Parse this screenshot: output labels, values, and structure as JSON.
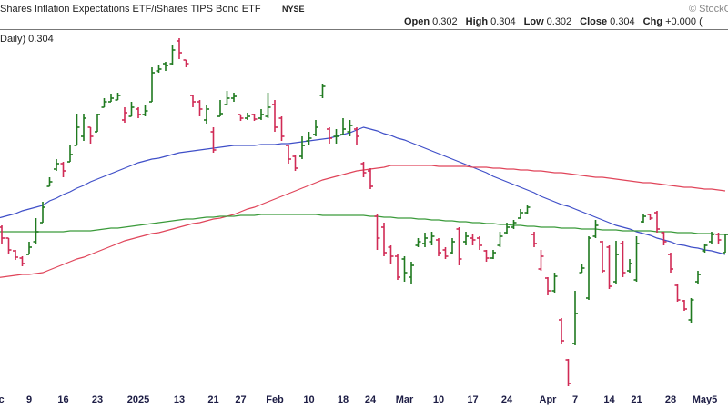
{
  "chart_data": {
    "type": "ohlc",
    "title": "Shares Inflation Expectations ETF/iShares TIPS Bond ETF",
    "exchange": "NYSE",
    "copyright": "© StockCh",
    "legend_label": "Daily) 0.304",
    "quote": [
      {
        "label": "Open",
        "value": 0.302
      },
      {
        "label": "High",
        "value": 0.304
      },
      {
        "label": "Low",
        "value": 0.302
      },
      {
        "label": "Close",
        "value": 0.304
      },
      {
        "label": "Chg",
        "value": "+0.000 ("
      }
    ],
    "up_color": "#1f7a1f",
    "down_color": "#d02a55",
    "ylim": [
      0.2848,
      0.3268
    ],
    "categories": [
      "Dec",
      null,
      null,
      null,
      null,
      "9",
      null,
      null,
      null,
      null,
      "16",
      null,
      null,
      null,
      null,
      "23",
      null,
      null,
      null,
      null,
      null,
      "2025",
      null,
      null,
      null,
      null,
      null,
      "13",
      null,
      null,
      null,
      null,
      "21",
      null,
      null,
      null,
      "27",
      null,
      null,
      null,
      null,
      "Feb",
      null,
      null,
      null,
      null,
      "10",
      null,
      null,
      null,
      null,
      "18",
      null,
      null,
      null,
      "24",
      null,
      null,
      null,
      null,
      "Mar",
      null,
      null,
      null,
      null,
      "10",
      null,
      null,
      null,
      null,
      "17",
      null,
      null,
      null,
      null,
      "24",
      null,
      null,
      null,
      null,
      null,
      "Apr",
      null,
      null,
      null,
      "7",
      null,
      null,
      null,
      null,
      "14",
      null,
      null,
      null,
      "21",
      null,
      null,
      null,
      null,
      "28",
      null,
      null,
      null,
      null,
      "May5",
      null,
      null,
      null
    ],
    "open": [
      0.305,
      0.3048,
      0.3036,
      0.3022,
      0.3014,
      0.3018,
      0.3032,
      0.3053,
      0.3093,
      0.3112,
      0.3118,
      0.312,
      0.3138,
      0.3148,
      0.3158,
      0.3153,
      0.318,
      0.3186,
      0.3188,
      0.3166,
      0.317,
      0.3178,
      0.3172,
      0.3186,
      0.322,
      0.3228,
      0.3228,
      0.3253,
      0.3232,
      0.3193,
      0.3186,
      0.3166,
      0.3153,
      0.317,
      0.3183,
      0.319,
      0.3172,
      0.3168,
      0.3172,
      0.3168,
      0.317,
      0.3183,
      0.3168,
      0.3138,
      0.3126,
      0.3126,
      0.3143,
      0.315,
      0.3193,
      0.3156,
      0.3148,
      0.315,
      0.3153,
      0.3156,
      0.3118,
      0.311,
      0.306,
      0.3048,
      0.3026,
      0.3016,
      0.3013,
      0.2993,
      0.3028,
      0.303,
      0.3032,
      0.3034,
      0.3023,
      0.302,
      0.3046,
      0.3032,
      0.3036,
      0.3036,
      0.3022,
      0.3014,
      0.3028,
      0.3042,
      0.3048,
      0.3058,
      0.3064,
      0.304,
      0.3002,
      0.2992,
      0.2978,
      0.2946,
      0.2902,
      0.292,
      0.2998,
      0.297,
      0.3038,
      0.3032,
      0.3026,
      0.2988,
      0.303,
      0.3,
      0.299,
      0.3054,
      0.3062,
      0.3064,
      0.3042,
      0.3018,
      0.2984,
      0.2967,
      0.2946,
      0.2988,
      0.3022,
      0.3032,
      0.304,
      0.302
    ],
    "high": [
      0.3053,
      0.305,
      0.3036,
      0.3023,
      0.3016,
      0.3032,
      0.3058,
      0.3076,
      0.3103,
      0.3123,
      0.312,
      0.3138,
      0.3173,
      0.3173,
      0.3158,
      0.3173,
      0.319,
      0.3195,
      0.3196,
      0.318,
      0.3186,
      0.318,
      0.3183,
      0.3224,
      0.3226,
      0.323,
      0.3248,
      0.3256,
      0.3232,
      0.3193,
      0.3188,
      0.3182,
      0.3158,
      0.3188,
      0.3198,
      0.3196,
      0.3172,
      0.3174,
      0.3173,
      0.3178,
      0.3196,
      0.3188,
      0.317,
      0.3138,
      0.3128,
      0.3148,
      0.3153,
      0.3166,
      0.3206,
      0.3158,
      0.3156,
      0.3168,
      0.3166,
      0.3158,
      0.312,
      0.3113,
      0.3062,
      0.3053,
      0.3028,
      0.3018,
      0.3016,
      0.301,
      0.3036,
      0.3042,
      0.3043,
      0.3036,
      0.3026,
      0.3036,
      0.3048,
      0.3043,
      0.304,
      0.3038,
      0.3023,
      0.3023,
      0.3043,
      0.3053,
      0.3056,
      0.3068,
      0.3073,
      0.3043,
      0.3023,
      0.2993,
      0.2998,
      0.2948,
      0.2903,
      0.2978,
      0.3008,
      0.3038,
      0.3056,
      0.3033,
      0.3028,
      0.3033,
      0.3033,
      0.3013,
      0.3038,
      0.3063,
      0.3063,
      0.3066,
      0.3043,
      0.302,
      0.2986,
      0.2968,
      0.297,
      0.3,
      0.303,
      0.3043,
      0.3042,
      0.304
    ],
    "low": [
      0.3042,
      0.303,
      0.3018,
      0.3012,
      0.3005,
      0.3018,
      0.303,
      0.3053,
      0.3093,
      0.311,
      0.3103,
      0.312,
      0.3138,
      0.3143,
      0.314,
      0.3153,
      0.318,
      0.3186,
      0.3188,
      0.3163,
      0.317,
      0.3168,
      0.317,
      0.3186,
      0.3218,
      0.322,
      0.3226,
      0.3233,
      0.3224,
      0.318,
      0.317,
      0.3162,
      0.313,
      0.317,
      0.3183,
      0.3186,
      0.3165,
      0.3166,
      0.3165,
      0.3166,
      0.3168,
      0.3153,
      0.3143,
      0.3118,
      0.311,
      0.3123,
      0.3138,
      0.3148,
      0.319,
      0.314,
      0.314,
      0.315,
      0.3148,
      0.3138,
      0.3103,
      0.309,
      0.3023,
      0.3016,
      0.3008,
      0.299,
      0.2988,
      0.2986,
      0.3026,
      0.3026,
      0.3028,
      0.3016,
      0.3013,
      0.3018,
      0.3006,
      0.3028,
      0.3028,
      0.3023,
      0.301,
      0.3013,
      0.3026,
      0.304,
      0.3046,
      0.3058,
      0.3063,
      0.3026,
      0.3,
      0.2973,
      0.2976,
      0.292,
      0.2873,
      0.2918,
      0.2998,
      0.2968,
      0.3036,
      0.2998,
      0.298,
      0.2986,
      0.2993,
      0.2998,
      0.2988,
      0.3053,
      0.3056,
      0.3042,
      0.3028,
      0.2998,
      0.2966,
      0.2956,
      0.2943,
      0.2986,
      0.302,
      0.303,
      0.303,
      0.302
    ],
    "close": [
      0.3048,
      0.3036,
      0.3023,
      0.3015,
      0.3008,
      0.3026,
      0.3043,
      0.307,
      0.3098,
      0.3118,
      0.311,
      0.3128,
      0.3158,
      0.3168,
      0.3148,
      0.3172,
      0.3186,
      0.319,
      0.3193,
      0.3174,
      0.318,
      0.3172,
      0.3176,
      0.3218,
      0.3222,
      0.3226,
      0.3243,
      0.324,
      0.3228,
      0.3186,
      0.3178,
      0.3178,
      0.3133,
      0.3173,
      0.319,
      0.3192,
      0.3168,
      0.317,
      0.3167,
      0.3172,
      0.318,
      0.3158,
      0.3148,
      0.3123,
      0.3113,
      0.3138,
      0.3146,
      0.3158,
      0.3203,
      0.3146,
      0.3148,
      0.3156,
      0.316,
      0.3148,
      0.3108,
      0.3093,
      0.3036,
      0.302,
      0.3016,
      0.2993,
      0.2998,
      0.3006,
      0.3032,
      0.3036,
      0.3038,
      0.302,
      0.3016,
      0.3032,
      0.3013,
      0.3038,
      0.3034,
      0.3028,
      0.3014,
      0.302,
      0.3038,
      0.3048,
      0.3053,
      0.3064,
      0.307,
      0.303,
      0.3016,
      0.2978,
      0.2994,
      0.2923,
      0.2876,
      0.2953,
      0.3003,
      0.3036,
      0.305,
      0.3,
      0.2983,
      0.3018,
      0.2998,
      0.3008,
      0.303,
      0.306,
      0.3058,
      0.3046,
      0.3032,
      0.3002,
      0.2968,
      0.2958,
      0.2968,
      0.2996,
      0.3028,
      0.304,
      0.3034,
      0.304
    ],
    "series": [
      {
        "color": "#3f4fc8",
        "values": [
          0.3057,
          0.3059,
          0.3061,
          0.3063,
          0.3066,
          0.3068,
          0.307,
          0.3072,
          0.3077,
          0.308,
          0.3084,
          0.3087,
          0.3091,
          0.3094,
          0.3098,
          0.3101,
          0.3104,
          0.3107,
          0.311,
          0.3113,
          0.3116,
          0.3119,
          0.3121,
          0.3123,
          0.3124,
          0.3126,
          0.3128,
          0.313,
          0.3131,
          0.3132,
          0.3133,
          0.3134,
          0.3135,
          0.3136,
          0.3137,
          0.3138,
          0.3138,
          0.3138,
          0.3138,
          0.3139,
          0.3139,
          0.3139,
          0.314,
          0.314,
          0.3141,
          0.3142,
          0.3143,
          0.3144,
          0.3145,
          0.3146,
          0.3148,
          0.315,
          0.3152,
          0.3155,
          0.3158,
          0.3156,
          0.3154,
          0.3151,
          0.3149,
          0.3146,
          0.3144,
          0.3141,
          0.3138,
          0.3135,
          0.3132,
          0.3129,
          0.3126,
          0.3123,
          0.312,
          0.3117,
          0.3114,
          0.3111,
          0.3108,
          0.3104,
          0.3101,
          0.3098,
          0.3095,
          0.3092,
          0.3089,
          0.3086,
          0.3082,
          0.3079,
          0.3076,
          0.3073,
          0.3071,
          0.3068,
          0.3065,
          0.3062,
          0.3059,
          0.3056,
          0.3053,
          0.305,
          0.3048,
          0.3046,
          0.3043,
          0.3041,
          0.3039,
          0.3036,
          0.3034,
          0.3032,
          0.3029,
          0.3028,
          0.3026,
          0.3025,
          0.3023,
          0.3022,
          0.302,
          0.3018
        ]
      },
      {
        "color": "#e0455a",
        "values": [
          0.2992,
          0.2993,
          0.2994,
          0.2995,
          0.2996,
          0.2996,
          0.2997,
          0.2998,
          0.3001,
          0.3004,
          0.3007,
          0.301,
          0.3013,
          0.3015,
          0.3018,
          0.3021,
          0.3024,
          0.3027,
          0.303,
          0.3033,
          0.3035,
          0.3037,
          0.3039,
          0.3041,
          0.3042,
          0.3044,
          0.3046,
          0.3048,
          0.305,
          0.3052,
          0.3053,
          0.3055,
          0.3057,
          0.3058,
          0.306,
          0.3062,
          0.3065,
          0.3068,
          0.307,
          0.3073,
          0.3076,
          0.3079,
          0.3082,
          0.3085,
          0.3088,
          0.3091,
          0.3094,
          0.3097,
          0.31,
          0.3102,
          0.3104,
          0.3106,
          0.3108,
          0.311,
          0.3111,
          0.3112,
          0.3113,
          0.3114,
          0.3116,
          0.3116,
          0.3116,
          0.3116,
          0.3116,
          0.3116,
          0.3116,
          0.3115,
          0.3115,
          0.3115,
          0.3115,
          0.3115,
          0.3114,
          0.3114,
          0.3114,
          0.3113,
          0.3113,
          0.3112,
          0.3112,
          0.3111,
          0.3111,
          0.311,
          0.311,
          0.3109,
          0.3108,
          0.3108,
          0.3107,
          0.3106,
          0.3105,
          0.3104,
          0.3103,
          0.3103,
          0.3102,
          0.3101,
          0.31,
          0.3099,
          0.3098,
          0.3097,
          0.3097,
          0.3096,
          0.3095,
          0.3094,
          0.3093,
          0.3092,
          0.3092,
          0.3091,
          0.309,
          0.309,
          0.3089,
          0.3088
        ]
      },
      {
        "color": "#3a9a3a",
        "values": [
          0.3043,
          0.3043,
          0.3043,
          0.3043,
          0.3043,
          0.3043,
          0.3043,
          0.3043,
          0.3043,
          0.3043,
          0.3043,
          0.3044,
          0.3044,
          0.3044,
          0.3044,
          0.3045,
          0.3046,
          0.3047,
          0.3047,
          0.3048,
          0.3049,
          0.305,
          0.3051,
          0.3052,
          0.3053,
          0.3054,
          0.3055,
          0.3056,
          0.3057,
          0.3057,
          0.3058,
          0.3059,
          0.3059,
          0.306,
          0.306,
          0.306,
          0.3061,
          0.3061,
          0.3061,
          0.3062,
          0.3062,
          0.3062,
          0.3062,
          0.3062,
          0.3062,
          0.3062,
          0.3062,
          0.3062,
          0.3061,
          0.3061,
          0.3061,
          0.3061,
          0.3061,
          0.3061,
          0.3061,
          0.306,
          0.306,
          0.3059,
          0.3059,
          0.3058,
          0.3058,
          0.3058,
          0.3057,
          0.3057,
          0.3056,
          0.3056,
          0.3055,
          0.3055,
          0.3054,
          0.3054,
          0.3053,
          0.3053,
          0.3052,
          0.3052,
          0.3051,
          0.3051,
          0.305,
          0.305,
          0.3049,
          0.3049,
          0.3048,
          0.3048,
          0.3048,
          0.3047,
          0.3047,
          0.3047,
          0.3046,
          0.3046,
          0.3046,
          0.3045,
          0.3045,
          0.3045,
          0.3044,
          0.3044,
          0.3044,
          0.3044,
          0.3044,
          0.3043,
          0.3043,
          0.3043,
          0.3042,
          0.3042,
          0.3042,
          0.3041,
          0.3041,
          0.3041,
          0.304,
          0.304
        ]
      }
    ]
  }
}
